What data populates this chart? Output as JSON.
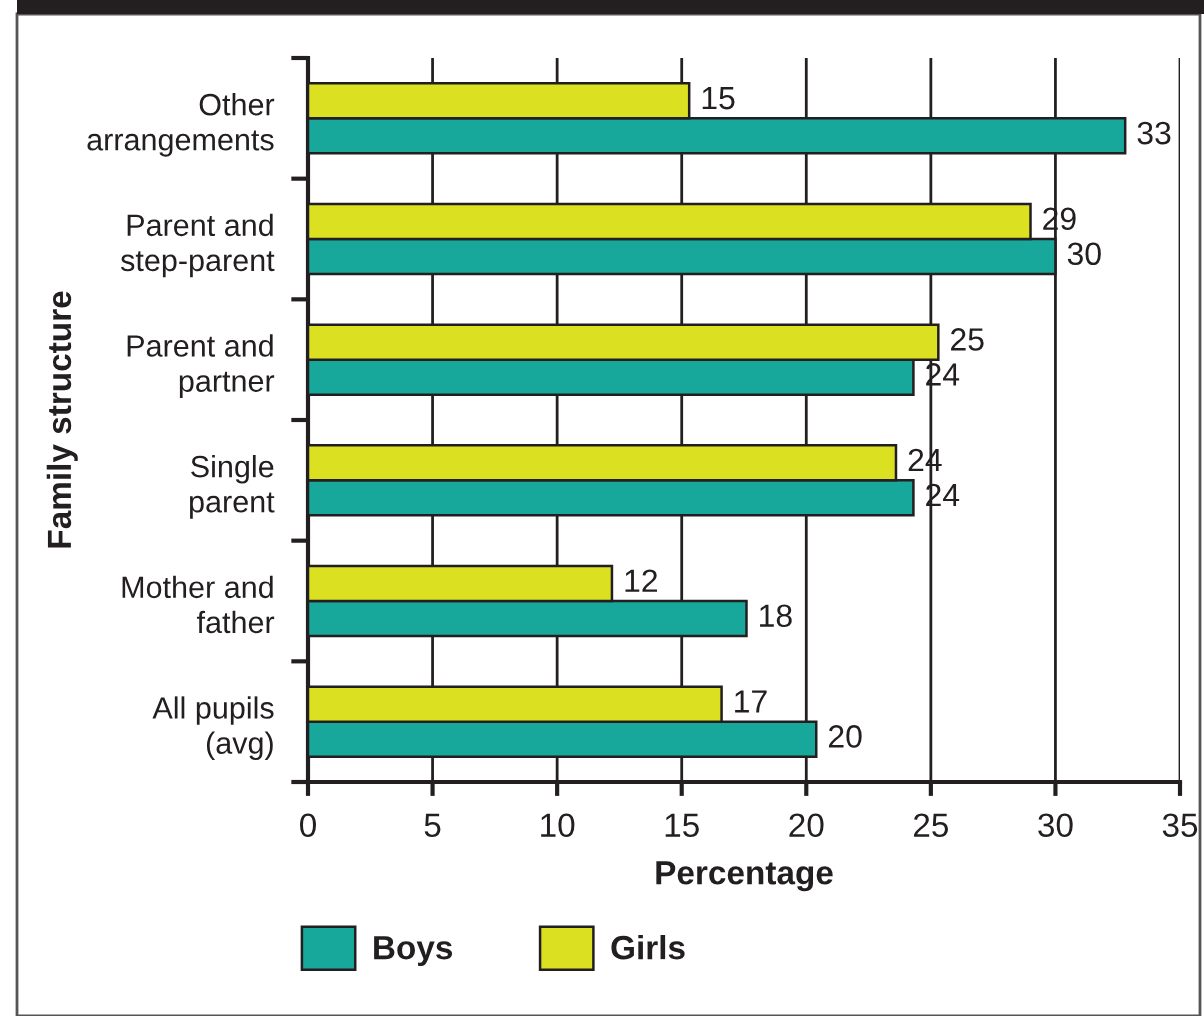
{
  "chart_data": {
    "type": "bar",
    "orientation": "horizontal",
    "xlabel": "Percentage",
    "ylabel": "Family structure",
    "categories": [
      "Other arrangements",
      "Parent and step-parent",
      "Parent and partner",
      "Single parent",
      "Mother and father",
      "All pupils (avg)"
    ],
    "series": [
      {
        "name": "Boys",
        "color": "#17a89b",
        "values": [
          32.8,
          30.0,
          24.3,
          24.3,
          17.6,
          20.4
        ],
        "value_labels": [
          "33",
          "30",
          "24",
          "24",
          "18",
          "20"
        ]
      },
      {
        "name": "Girls",
        "color": "#dbe021",
        "values": [
          15.3,
          29.0,
          25.3,
          23.6,
          12.2,
          16.6
        ],
        "value_labels": [
          "15",
          "29",
          "25",
          "24",
          "12",
          "17"
        ]
      }
    ],
    "xlim": [
      0,
      35
    ],
    "xticks": [
      0,
      5,
      10,
      15,
      20,
      25,
      30,
      35
    ],
    "grid": "x",
    "legend": "bottom left"
  }
}
